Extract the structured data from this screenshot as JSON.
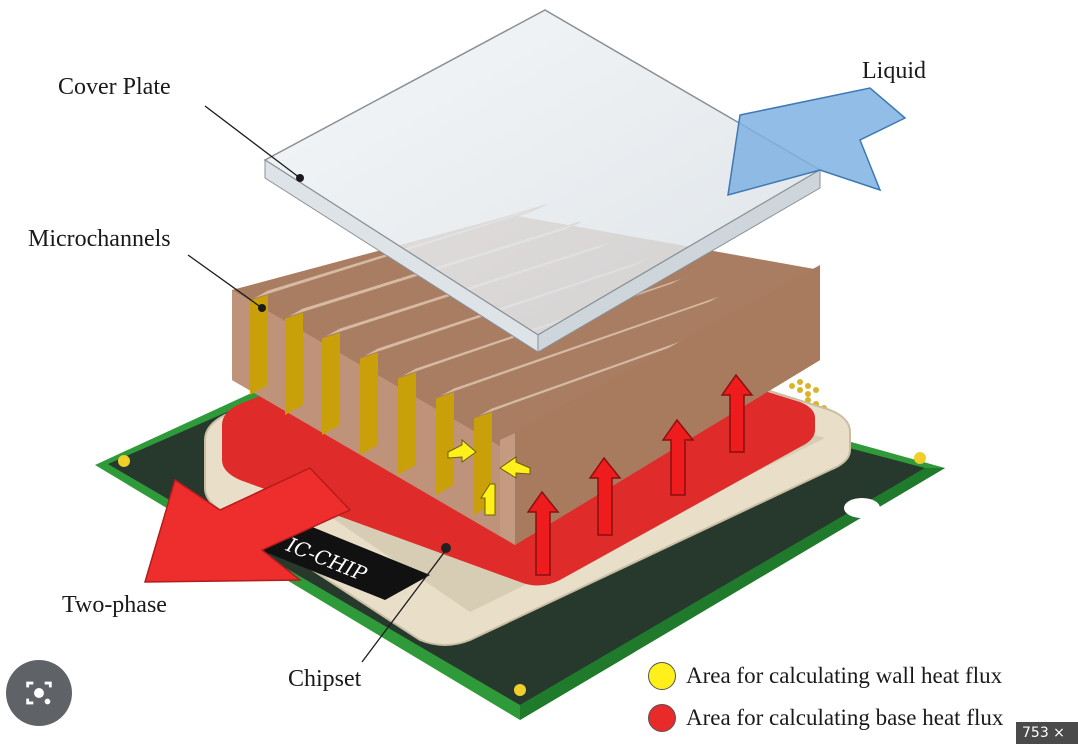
{
  "labels": {
    "cover_plate": "Cover Plate",
    "microchannels": "Microchannels",
    "liquid": "Liquid",
    "two_phase": "Two-phase",
    "chipset": "Chipset",
    "ic_chip": "IC-CHIP"
  },
  "legend": [
    {
      "text": "Area for calculating wall heat flux",
      "color": "#ffef1a"
    },
    {
      "text": "Area for calculating base heat flux",
      "color": "#e82a2a"
    }
  ],
  "badge": {
    "size_text": "753 ×"
  },
  "colors": {
    "copper": "#b58a6e",
    "copper_dark": "#8f6549",
    "gold": "#c9a00a",
    "pcb_green": "#2f9a3a",
    "pcb_dark": "#26352c",
    "base_red": "#e02b2b",
    "cover_glass": "#e6ebee",
    "liquid_blue": "#7fb2e2"
  },
  "icons": {
    "lens": "camera-search-icon"
  }
}
